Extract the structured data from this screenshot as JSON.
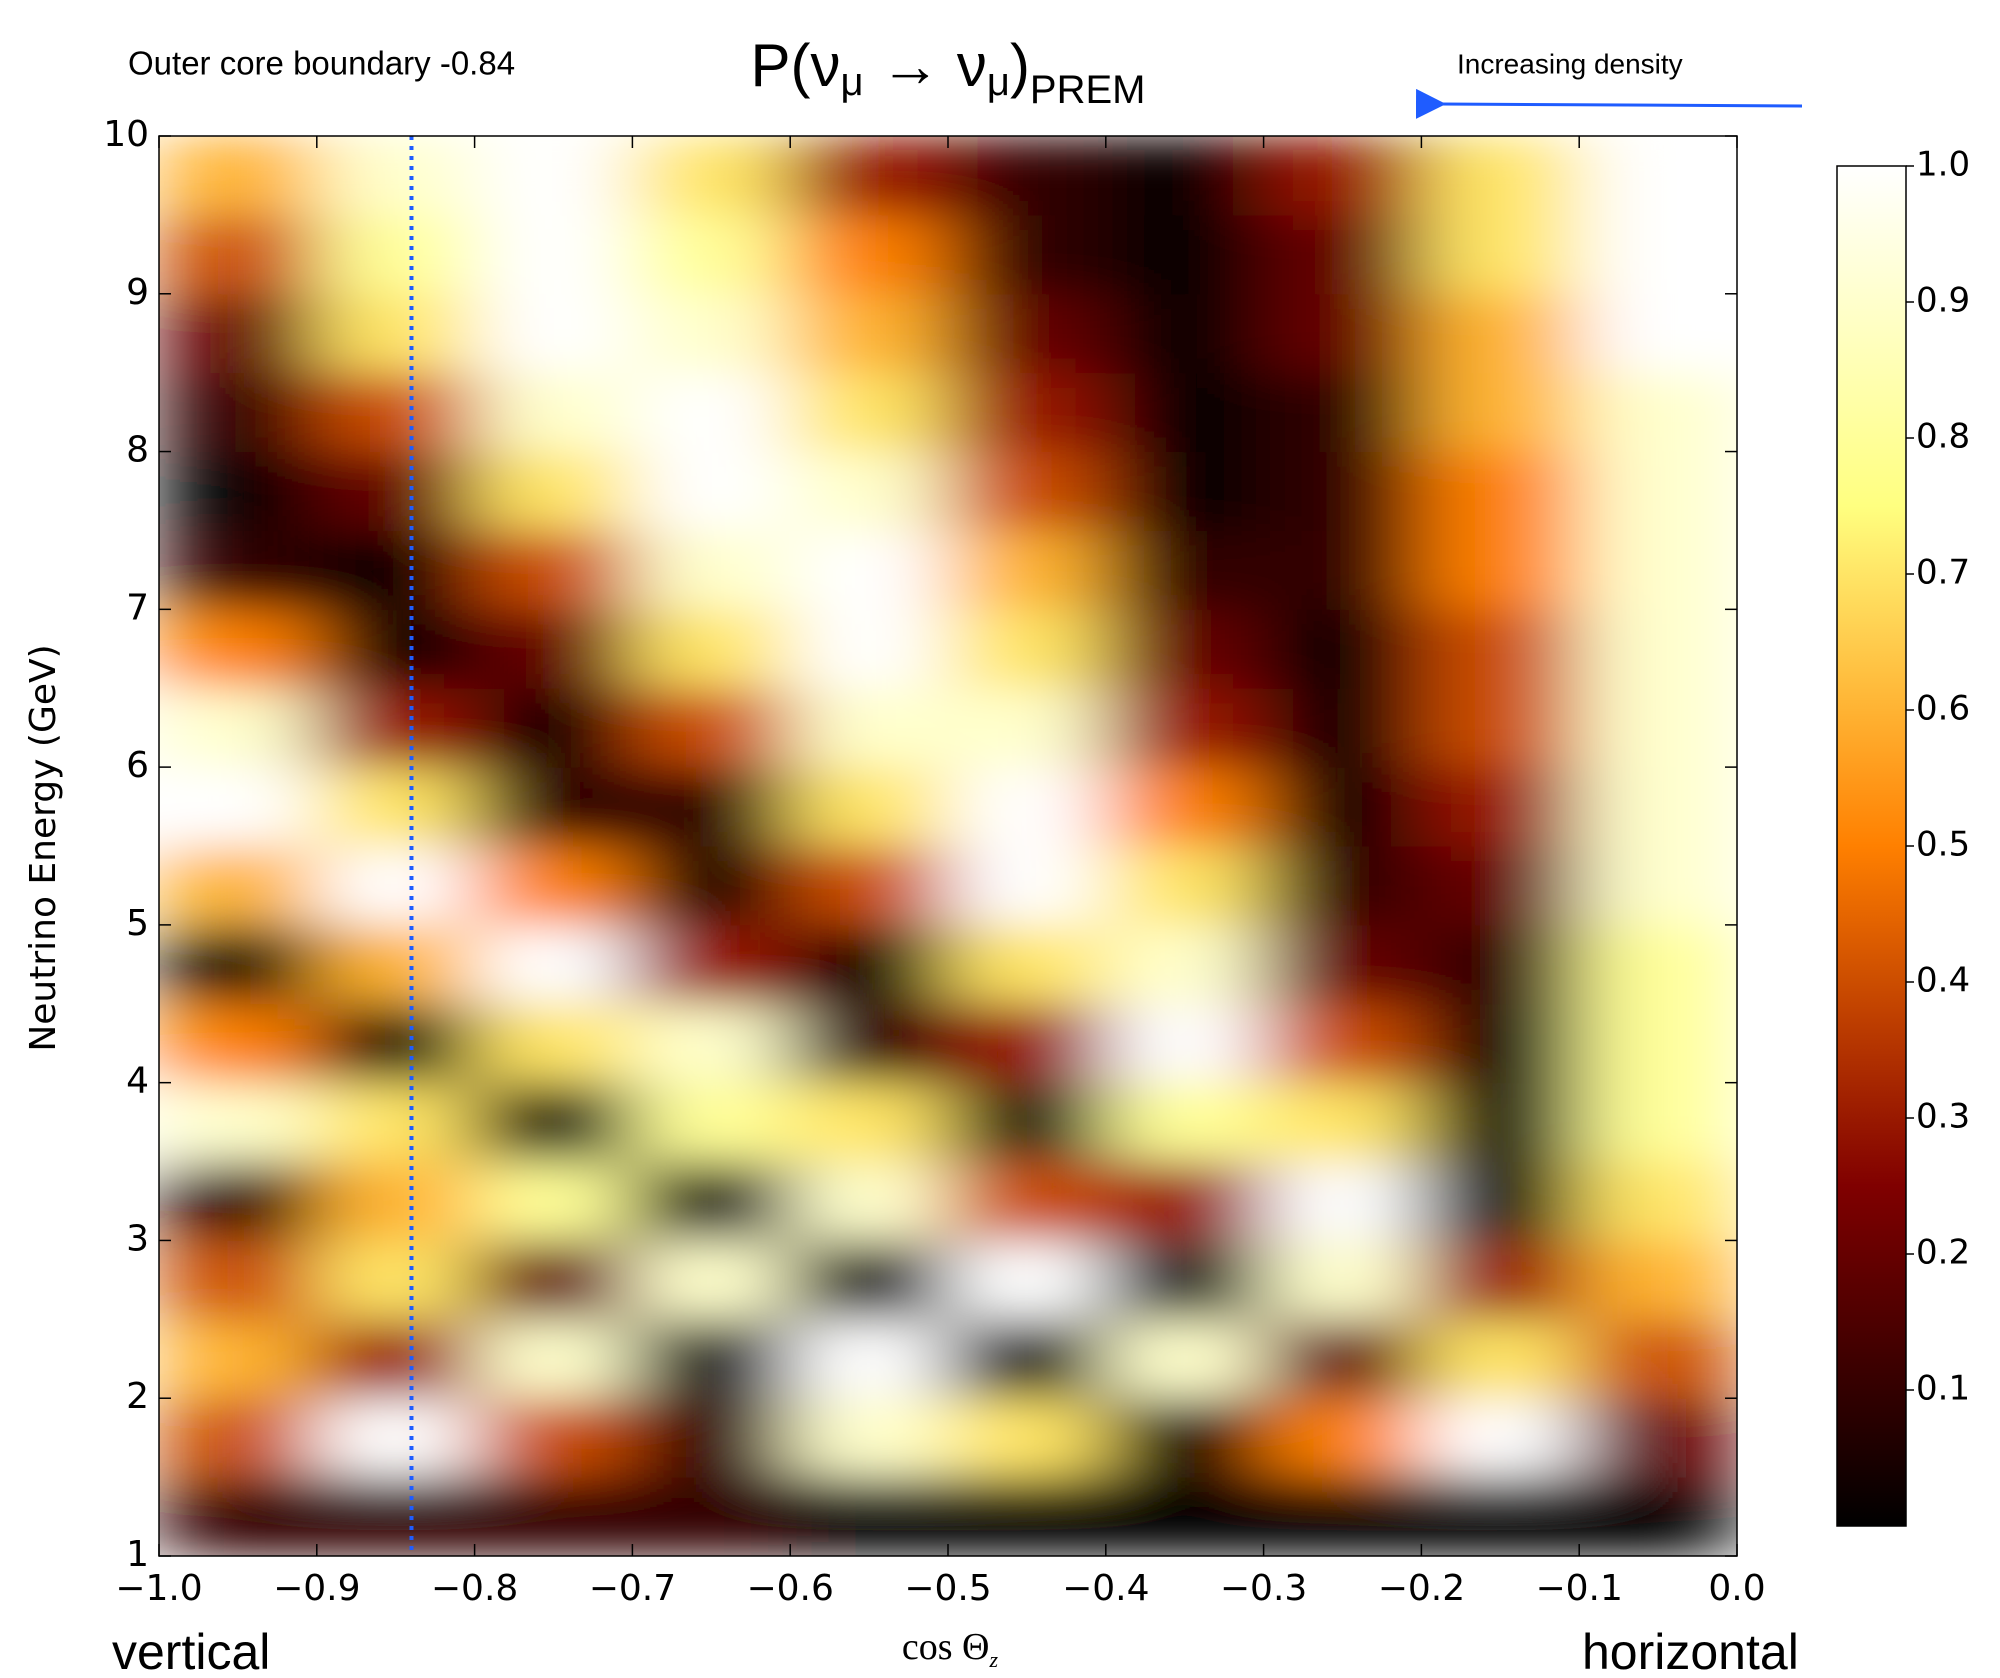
{
  "chart_data": {
    "type": "heatmap",
    "title": [
      "P(ν",
      "μ",
      " → ν",
      "μ",
      ")",
      "PREM"
    ],
    "x_label": [
      "cos Θ",
      "z"
    ],
    "y_label": "Neutrino Energy (GeV)",
    "annotations": {
      "boundary": "Outer core boundary -0.84",
      "density": "Increasing density",
      "left": "vertical",
      "right": "horizontal"
    },
    "vline": {
      "x": -0.84,
      "color": "#1f5cff"
    },
    "colormap": "afmhot",
    "x": [
      -0.95,
      -0.85,
      -0.75,
      -0.65,
      -0.55,
      -0.45,
      -0.35,
      -0.25,
      -0.15,
      -0.05
    ],
    "y": [
      1.25,
      1.75,
      2.25,
      2.75,
      3.25,
      3.75,
      4.25,
      4.75,
      5.25,
      5.75,
      6.25,
      6.75,
      7.25,
      7.75,
      8.25,
      8.75,
      9.25,
      9.75
    ],
    "z": [
      [
        0.1,
        0.1,
        0.1,
        0.1,
        0.0,
        0.0,
        0.0,
        0.0,
        0.0,
        0.0
      ],
      [
        0.4,
        1.0,
        0.4,
        0.1,
        0.9,
        0.7,
        0.0,
        0.5,
        1.0,
        0.2
      ],
      [
        0.6,
        0.3,
        0.9,
        0.0,
        1.0,
        0.0,
        0.9,
        0.2,
        0.7,
        0.4
      ],
      [
        0.4,
        0.7,
        0.2,
        0.9,
        0.0,
        1.0,
        0.0,
        0.9,
        0.3,
        0.6
      ],
      [
        0.1,
        0.6,
        0.8,
        0.0,
        0.9,
        0.4,
        0.3,
        1.0,
        0.0,
        0.7
      ],
      [
        0.9,
        0.7,
        0.0,
        0.8,
        0.7,
        0.0,
        0.8,
        0.7,
        0.0,
        0.8
      ],
      [
        0.5,
        0.0,
        0.7,
        0.9,
        0.1,
        0.3,
        1.0,
        0.4,
        0.0,
        0.8
      ],
      [
        0.0,
        0.6,
        1.0,
        0.3,
        0.0,
        0.7,
        0.9,
        0.2,
        0.1,
        0.8
      ],
      [
        0.6,
        1.0,
        0.5,
        0.0,
        0.4,
        1.0,
        0.7,
        0.1,
        0.2,
        0.9
      ],
      [
        1.0,
        0.7,
        0.1,
        0.1,
        0.7,
        1.0,
        0.5,
        0.0,
        0.3,
        0.9
      ],
      [
        0.9,
        0.3,
        0.0,
        0.4,
        0.9,
        0.9,
        0.3,
        0.0,
        0.4,
        0.9
      ],
      [
        0.5,
        0.0,
        0.2,
        0.7,
        1.0,
        0.7,
        0.2,
        0.0,
        0.4,
        0.9
      ],
      [
        0.1,
        0.0,
        0.4,
        0.9,
        1.0,
        0.6,
        0.1,
        0.1,
        0.5,
        0.9
      ],
      [
        0.0,
        0.2,
        0.7,
        1.0,
        0.9,
        0.4,
        0.0,
        0.1,
        0.5,
        0.9
      ],
      [
        0.1,
        0.4,
        0.9,
        1.0,
        0.7,
        0.3,
        0.0,
        0.1,
        0.6,
        0.9
      ],
      [
        0.2,
        0.7,
        1.0,
        0.9,
        0.6,
        0.2,
        0.0,
        0.2,
        0.6,
        1.0
      ],
      [
        0.4,
        0.8,
        1.0,
        0.8,
        0.5,
        0.1,
        0.0,
        0.2,
        0.7,
        1.0
      ],
      [
        0.6,
        0.9,
        1.0,
        0.7,
        0.3,
        0.1,
        0.0,
        0.3,
        0.7,
        1.0
      ]
    ],
    "xlim": [
      -1,
      0
    ],
    "ylim": [
      1,
      10
    ],
    "zlim": [
      0,
      1
    ],
    "xticks": [
      {
        "value": -1,
        "label": "−1.0"
      },
      {
        "value": -0.9,
        "label": "−0.9"
      },
      {
        "value": -0.8,
        "label": "−0.8"
      },
      {
        "value": -0.7,
        "label": "−0.7"
      },
      {
        "value": -0.6,
        "label": "−0.6"
      },
      {
        "value": -0.5,
        "label": "−0.5"
      },
      {
        "value": -0.4,
        "label": "−0.4"
      },
      {
        "value": -0.3,
        "label": "−0.3"
      },
      {
        "value": -0.2,
        "label": "−0.2"
      },
      {
        "value": -0.1,
        "label": "−0.1"
      },
      {
        "value": 0,
        "label": "0.0"
      }
    ],
    "yticks": [
      1,
      2,
      3,
      4,
      5,
      6,
      7,
      8,
      9,
      10
    ],
    "zticks": [
      0.1,
      0.2,
      0.3,
      0.4,
      0.5,
      0.6,
      0.7,
      0.8,
      0.9,
      {
        "value": 1,
        "label": "1.0"
      }
    ]
  }
}
